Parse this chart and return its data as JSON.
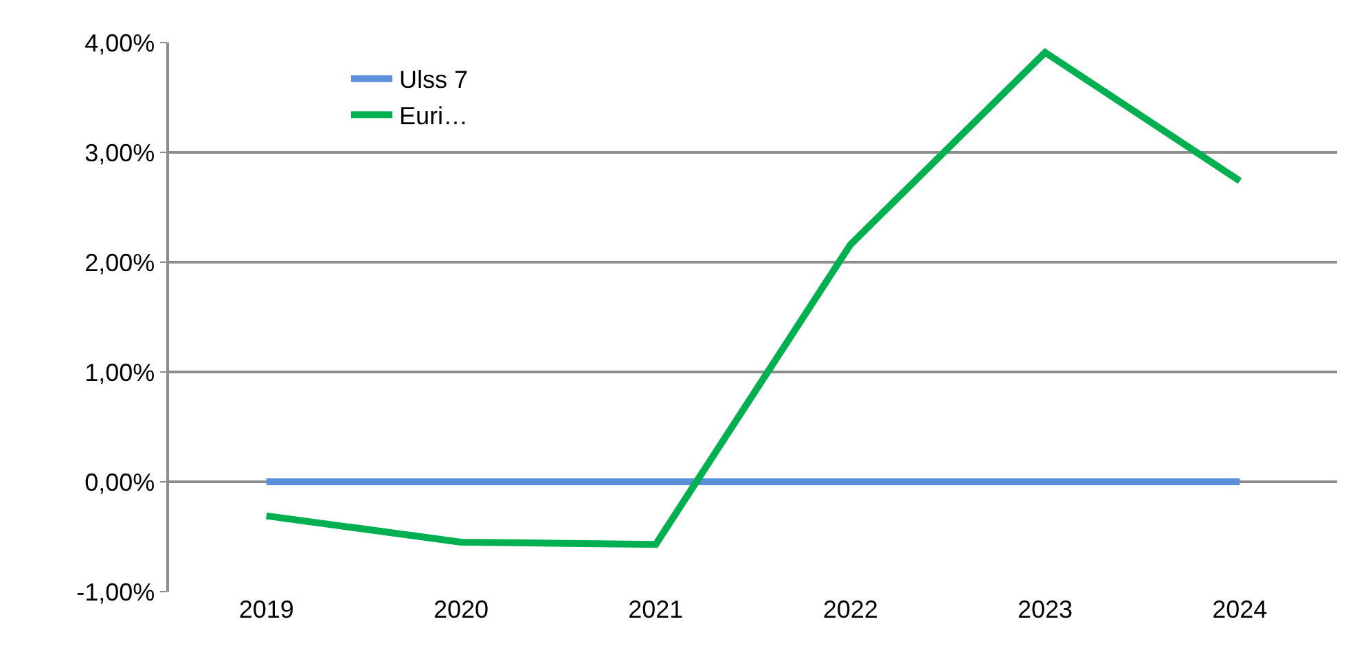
{
  "chart_data": {
    "type": "line",
    "categories": [
      "2019",
      "2020",
      "2021",
      "2022",
      "2023",
      "2024"
    ],
    "series": [
      {
        "name": "Ulss 7",
        "color": "#5b8fd9",
        "values": [
          0,
          0,
          0,
          0,
          0,
          0
        ]
      },
      {
        "name": "Euri…",
        "color": "#00b050",
        "values": [
          -0.31,
          -0.55,
          -0.57,
          2.16,
          3.91,
          2.74
        ]
      }
    ],
    "ylim": [
      -1,
      4
    ],
    "yticks": [
      {
        "value": -1,
        "label": "-1,00%"
      },
      {
        "value": 0,
        "label": "0,00%"
      },
      {
        "value": 1,
        "label": "1,00%"
      },
      {
        "value": 2,
        "label": "2,00%"
      },
      {
        "value": 3,
        "label": "3,00%"
      },
      {
        "value": 4,
        "label": "4,00%"
      }
    ],
    "grid": "y",
    "legend": "top left",
    "marker": "none",
    "line_style": "solid"
  }
}
